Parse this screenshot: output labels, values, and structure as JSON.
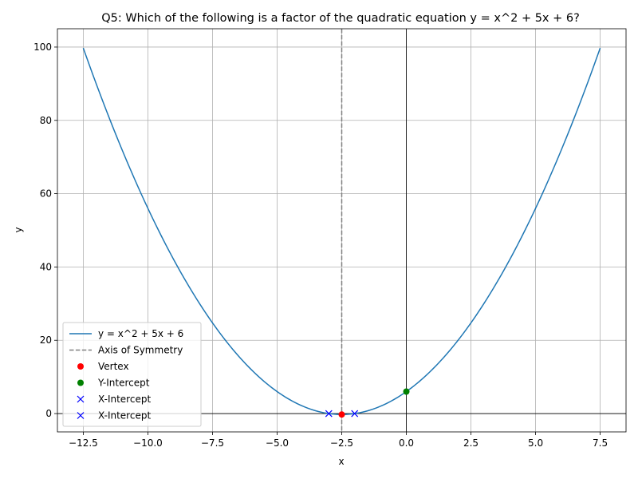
{
  "chart_data": {
    "type": "line",
    "title": "Q5: Which of the following is a factor of the quadratic equation y = x^2 + 5x + 6?",
    "xlabel": "x",
    "ylabel": "y",
    "xlim": [
      -13.5,
      8.5
    ],
    "ylim": [
      -5,
      105
    ],
    "xticks": [
      -12.5,
      -10.0,
      -7.5,
      -5.0,
      -2.5,
      0.0,
      2.5,
      5.0,
      7.5
    ],
    "xtick_labels": [
      "−12.5",
      "−10.0",
      "−7.5",
      "−5.0",
      "−2.5",
      "0.0",
      "2.5",
      "5.0",
      "7.5"
    ],
    "yticks": [
      0,
      20,
      40,
      60,
      80,
      100
    ],
    "ytick_labels": [
      "0",
      "20",
      "40",
      "60",
      "80",
      "100"
    ],
    "grid": true,
    "legend_position": "lower-left",
    "curve": {
      "name": "y = x^2 + 5x + 6",
      "color": "#1f77b4",
      "x_range": [
        -12.5,
        7.5
      ],
      "coefficients": [
        1,
        5,
        6
      ]
    },
    "axis_of_symmetry": {
      "name": "Axis of Symmetry",
      "x": -2.5,
      "color": "#808080"
    },
    "points": [
      {
        "name": "Vertex",
        "x": -2.5,
        "y": -0.25,
        "marker": "circle",
        "color": "#ff0000"
      },
      {
        "name": "Y-Intercept",
        "x": 0,
        "y": 6,
        "marker": "circle",
        "color": "#008000"
      },
      {
        "name": "X-Intercept",
        "x": -3,
        "y": 0,
        "marker": "x",
        "color": "#0000ff"
      },
      {
        "name": "X-Intercept",
        "x": -2,
        "y": 0,
        "marker": "x",
        "color": "#0000ff"
      }
    ],
    "legend": [
      "y = x^2 + 5x + 6",
      "Axis of Symmetry",
      "Vertex",
      "Y-Intercept",
      "X-Intercept",
      "X-Intercept"
    ]
  }
}
